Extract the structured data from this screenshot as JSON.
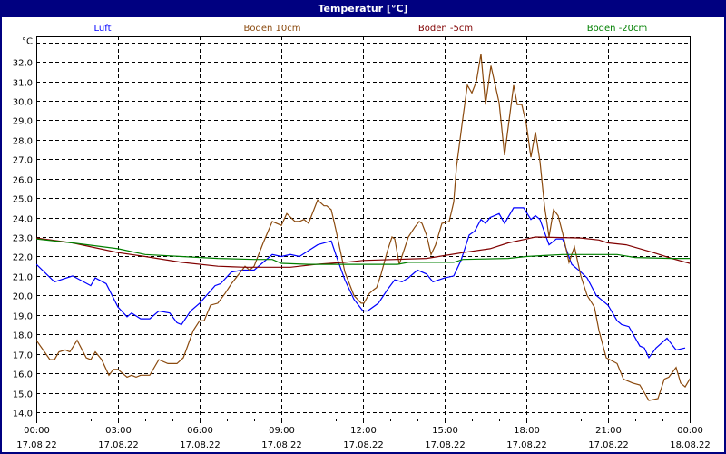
{
  "window": {
    "title": "Temperatur [°C]"
  },
  "chart_data": {
    "type": "line",
    "title": "Temperatur [°C]",
    "ylabel": "°C",
    "ylim": [
      14,
      33
    ],
    "yticks": [
      "14,0",
      "15,0",
      "16,0",
      "17,0",
      "18,0",
      "19,0",
      "20,0",
      "21,0",
      "22,0",
      "23,0",
      "24,0",
      "25,0",
      "26,0",
      "27,0",
      "28,0",
      "29,0",
      "30,0",
      "31,0",
      "32,0"
    ],
    "xlim": [
      "17.08.22 00:00",
      "18.08.22 00:00"
    ],
    "xticks": [
      {
        "time": "00:00",
        "date": "17.08.22"
      },
      {
        "time": "03:00",
        "date": "17.08.22"
      },
      {
        "time": "06:00",
        "date": "17.08.22"
      },
      {
        "time": "09:00",
        "date": "17.08.22"
      },
      {
        "time": "12:00",
        "date": "17.08.22"
      },
      {
        "time": "15:00",
        "date": "17.08.22"
      },
      {
        "time": "18:00",
        "date": "17.08.22"
      },
      {
        "time": "21:00",
        "date": "17.08.22"
      },
      {
        "time": "00:00",
        "date": "18.08.22"
      }
    ],
    "grid": true,
    "legend_position": "top",
    "series": [
      {
        "name": "Luft",
        "color": "#0000ff",
        "points": [
          [
            "00:00",
            21.6
          ],
          [
            "00:40",
            20.7
          ],
          [
            "01:20",
            21.0
          ],
          [
            "02:00",
            20.5
          ],
          [
            "02:10",
            20.9
          ],
          [
            "02:34",
            20.6
          ],
          [
            "03:00",
            19.4
          ],
          [
            "03:20",
            18.9
          ],
          [
            "03:30",
            19.1
          ],
          [
            "03:50",
            18.8
          ],
          [
            "04:10",
            18.8
          ],
          [
            "04:30",
            19.2
          ],
          [
            "04:54",
            19.1
          ],
          [
            "05:10",
            18.6
          ],
          [
            "05:20",
            18.5
          ],
          [
            "05:40",
            19.2
          ],
          [
            "06:00",
            19.6
          ],
          [
            "06:34",
            20.5
          ],
          [
            "06:46",
            20.6
          ],
          [
            "07:10",
            21.2
          ],
          [
            "07:34",
            21.3
          ],
          [
            "08:00",
            21.3
          ],
          [
            "08:40",
            22.1
          ],
          [
            "09:00",
            22.0
          ],
          [
            "09:20",
            22.1
          ],
          [
            "09:40",
            22.0
          ],
          [
            "10:00",
            22.3
          ],
          [
            "10:20",
            22.6
          ],
          [
            "10:50",
            22.8
          ],
          [
            "11:00",
            22.1
          ],
          [
            "11:20",
            20.8
          ],
          [
            "11:40",
            19.8
          ],
          [
            "12:00",
            19.2
          ],
          [
            "12:10",
            19.2
          ],
          [
            "12:34",
            19.6
          ],
          [
            "12:54",
            20.3
          ],
          [
            "13:10",
            20.8
          ],
          [
            "13:26",
            20.7
          ],
          [
            "13:40",
            20.9
          ],
          [
            "14:00",
            21.3
          ],
          [
            "14:20",
            21.1
          ],
          [
            "14:34",
            20.7
          ],
          [
            "15:00",
            20.9
          ],
          [
            "15:20",
            21.0
          ],
          [
            "15:36",
            21.8
          ],
          [
            "15:54",
            23.1
          ],
          [
            "16:06",
            23.3
          ],
          [
            "16:20",
            23.9
          ],
          [
            "16:30",
            23.7
          ],
          [
            "16:40",
            24.0
          ],
          [
            "17:00",
            24.2
          ],
          [
            "17:12",
            23.7
          ],
          [
            "17:32",
            24.5
          ],
          [
            "17:54",
            24.5
          ],
          [
            "18:10",
            23.9
          ],
          [
            "18:20",
            24.1
          ],
          [
            "18:30",
            23.9
          ],
          [
            "18:50",
            22.6
          ],
          [
            "19:06",
            22.9
          ],
          [
            "19:20",
            22.9
          ],
          [
            "19:40",
            21.6
          ],
          [
            "20:00",
            21.2
          ],
          [
            "20:14",
            20.9
          ],
          [
            "20:34",
            20.0
          ],
          [
            "21:00",
            19.5
          ],
          [
            "21:20",
            18.7
          ],
          [
            "21:30",
            18.5
          ],
          [
            "21:46",
            18.4
          ],
          [
            "22:10",
            17.4
          ],
          [
            "22:20",
            17.3
          ],
          [
            "22:30",
            16.8
          ],
          [
            "22:46",
            17.3
          ],
          [
            "23:10",
            17.8
          ],
          [
            "23:30",
            17.2
          ],
          [
            "23:50",
            17.3
          ]
        ]
      },
      {
        "name": "Boden 10cm",
        "color": "#8b4a0e",
        "points": [
          [
            "00:00",
            17.7
          ],
          [
            "00:30",
            16.7
          ],
          [
            "00:40",
            16.7
          ],
          [
            "00:50",
            17.1
          ],
          [
            "01:04",
            17.2
          ],
          [
            "01:14",
            17.1
          ],
          [
            "01:30",
            17.7
          ],
          [
            "01:50",
            16.8
          ],
          [
            "02:00",
            16.7
          ],
          [
            "02:10",
            17.1
          ],
          [
            "02:24",
            16.7
          ],
          [
            "02:40",
            15.9
          ],
          [
            "02:50",
            16.2
          ],
          [
            "03:00",
            16.2
          ],
          [
            "03:20",
            15.8
          ],
          [
            "03:30",
            15.9
          ],
          [
            "03:40",
            15.8
          ],
          [
            "03:50",
            15.9
          ],
          [
            "04:10",
            15.9
          ],
          [
            "04:30",
            16.7
          ],
          [
            "04:50",
            16.5
          ],
          [
            "05:10",
            16.5
          ],
          [
            "05:24",
            16.8
          ],
          [
            "05:46",
            18.2
          ],
          [
            "06:00",
            18.7
          ],
          [
            "06:10",
            18.7
          ],
          [
            "06:24",
            19.5
          ],
          [
            "06:40",
            19.6
          ],
          [
            "06:56",
            20.1
          ],
          [
            "07:10",
            20.6
          ],
          [
            "07:40",
            21.5
          ],
          [
            "07:50",
            21.3
          ],
          [
            "08:00",
            21.5
          ],
          [
            "08:20",
            22.7
          ],
          [
            "08:40",
            23.8
          ],
          [
            "09:00",
            23.6
          ],
          [
            "09:12",
            24.2
          ],
          [
            "09:30",
            23.8
          ],
          [
            "09:40",
            23.8
          ],
          [
            "09:50",
            23.9
          ],
          [
            "10:00",
            23.7
          ],
          [
            "10:20",
            24.9
          ],
          [
            "10:34",
            24.6
          ],
          [
            "10:40",
            24.6
          ],
          [
            "10:50",
            24.4
          ],
          [
            "11:00",
            23.4
          ],
          [
            "11:20",
            21.2
          ],
          [
            "11:40",
            20.0
          ],
          [
            "11:56",
            19.6
          ],
          [
            "12:02",
            19.6
          ],
          [
            "12:14",
            20.1
          ],
          [
            "12:24",
            20.3
          ],
          [
            "12:30",
            20.4
          ],
          [
            "12:40",
            21.1
          ],
          [
            "12:54",
            22.3
          ],
          [
            "13:04",
            23.0
          ],
          [
            "13:10",
            22.9
          ],
          [
            "13:20",
            21.6
          ],
          [
            "13:40",
            23.0
          ],
          [
            "13:54",
            23.5
          ],
          [
            "14:04",
            23.8
          ],
          [
            "14:10",
            23.7
          ],
          [
            "14:20",
            23.1
          ],
          [
            "14:30",
            22.1
          ],
          [
            "14:40",
            22.6
          ],
          [
            "14:54",
            23.7
          ],
          [
            "15:10",
            23.8
          ],
          [
            "15:20",
            24.8
          ],
          [
            "15:26",
            26.6
          ],
          [
            "15:40",
            29.1
          ],
          [
            "15:50",
            30.8
          ],
          [
            "16:00",
            30.4
          ],
          [
            "16:10",
            31.0
          ],
          [
            "16:20",
            32.4
          ],
          [
            "16:30",
            29.8
          ],
          [
            "16:42",
            31.8
          ],
          [
            "17:00",
            29.9
          ],
          [
            "17:12",
            27.2
          ],
          [
            "17:32",
            30.8
          ],
          [
            "17:40",
            29.8
          ],
          [
            "17:50",
            29.8
          ],
          [
            "18:00",
            28.8
          ],
          [
            "18:10",
            27.1
          ],
          [
            "18:20",
            28.4
          ],
          [
            "18:30",
            26.9
          ],
          [
            "18:40",
            24.6
          ],
          [
            "18:50",
            23.0
          ],
          [
            "19:00",
            24.4
          ],
          [
            "19:10",
            24.1
          ],
          [
            "19:20",
            23.2
          ],
          [
            "19:34",
            21.7
          ],
          [
            "19:46",
            22.5
          ],
          [
            "20:00",
            21.0
          ],
          [
            "20:14",
            20.0
          ],
          [
            "20:30",
            19.4
          ],
          [
            "20:40",
            18.2
          ],
          [
            "20:56",
            16.8
          ],
          [
            "21:20",
            16.5
          ],
          [
            "21:34",
            15.7
          ],
          [
            "21:54",
            15.5
          ],
          [
            "22:10",
            15.4
          ],
          [
            "22:30",
            14.6
          ],
          [
            "22:50",
            14.7
          ],
          [
            "23:04",
            15.7
          ],
          [
            "23:14",
            15.8
          ],
          [
            "23:30",
            16.3
          ],
          [
            "23:40",
            15.5
          ],
          [
            "23:50",
            15.3
          ],
          [
            "24:00",
            15.7
          ],
          [
            "24:10",
            15.4
          ]
        ]
      },
      {
        "name": "Boden -5cm",
        "color": "#800000",
        "points": [
          [
            "00:00",
            22.95
          ],
          [
            "01:20",
            22.7
          ],
          [
            "03:00",
            22.2
          ],
          [
            "04:00",
            22.0
          ],
          [
            "05:20",
            21.7
          ],
          [
            "06:40",
            21.5
          ],
          [
            "07:40",
            21.45
          ],
          [
            "09:20",
            21.45
          ],
          [
            "09:40",
            21.5
          ],
          [
            "10:16",
            21.6
          ],
          [
            "11:20",
            21.7
          ],
          [
            "12:00",
            21.8
          ],
          [
            "14:20",
            21.9
          ],
          [
            "15:40",
            22.2
          ],
          [
            "16:40",
            22.4
          ],
          [
            "17:20",
            22.7
          ],
          [
            "18:00",
            22.9
          ],
          [
            "18:20",
            23.0
          ],
          [
            "20:00",
            22.95
          ],
          [
            "20:40",
            22.85
          ],
          [
            "21:00",
            22.7
          ],
          [
            "21:40",
            22.6
          ],
          [
            "22:40",
            22.2
          ],
          [
            "23:20",
            21.9
          ],
          [
            "24:00",
            21.65
          ],
          [
            "24:30",
            21.5
          ]
        ]
      },
      {
        "name": "Boden -20cm",
        "color": "#008000",
        "points": [
          [
            "00:00",
            22.9
          ],
          [
            "01:20",
            22.7
          ],
          [
            "03:00",
            22.4
          ],
          [
            "04:00",
            22.1
          ],
          [
            "05:20",
            22.0
          ],
          [
            "06:40",
            21.9
          ],
          [
            "08:00",
            21.85
          ],
          [
            "08:40",
            21.85
          ],
          [
            "09:00",
            21.65
          ],
          [
            "10:00",
            21.6
          ],
          [
            "12:00",
            21.6
          ],
          [
            "13:16",
            21.6
          ],
          [
            "13:40",
            21.7
          ],
          [
            "15:20",
            21.7
          ],
          [
            "15:40",
            21.85
          ],
          [
            "17:20",
            21.9
          ],
          [
            "18:00",
            22.0
          ],
          [
            "18:40",
            22.05
          ],
          [
            "19:20",
            22.1
          ],
          [
            "21:20",
            22.1
          ],
          [
            "22:00",
            21.95
          ],
          [
            "23:20",
            21.9
          ],
          [
            "24:30",
            21.9
          ]
        ]
      }
    ]
  }
}
